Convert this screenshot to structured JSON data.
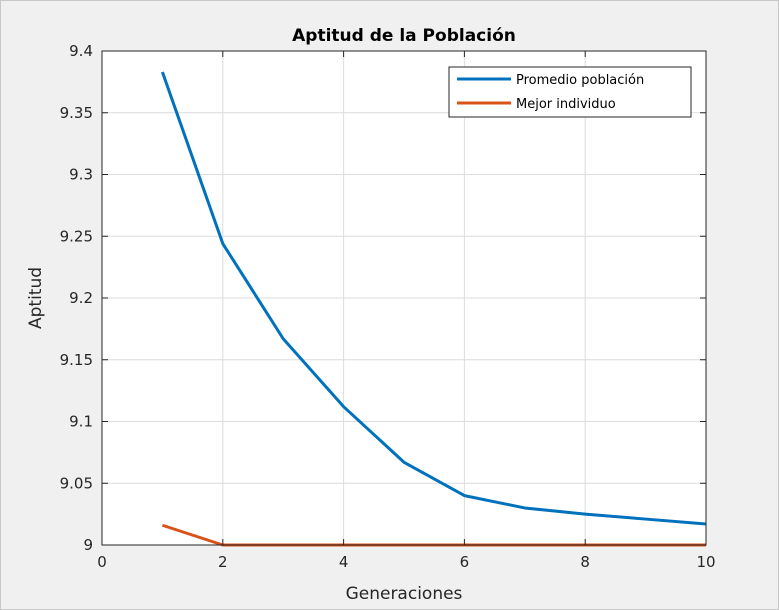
{
  "chart_data": {
    "type": "line",
    "title": "Aptitud de la Población",
    "xlabel": "Generaciones",
    "ylabel": "Aptitud",
    "xlim": [
      0,
      10
    ],
    "ylim": [
      9,
      9.4
    ],
    "xticks": [
      0,
      2,
      4,
      6,
      8,
      10
    ],
    "xtick_labels": [
      "0",
      "2",
      "4",
      "6",
      "8",
      "10"
    ],
    "yticks": [
      9,
      9.05,
      9.1,
      9.15,
      9.2,
      9.25,
      9.3,
      9.35,
      9.4
    ],
    "ytick_labels": [
      "9",
      "9.05",
      "9.1",
      "9.15",
      "9.2",
      "9.25",
      "9.3",
      "9.35",
      "9.4"
    ],
    "grid": true,
    "legend_position": "top-right",
    "x": [
      1,
      2,
      3,
      4,
      5,
      6,
      7,
      8,
      9,
      10
    ],
    "series": [
      {
        "name": "Promedio población",
        "color": "#0072bd",
        "values": [
          9.383,
          9.244,
          9.167,
          9.112,
          9.067,
          9.04,
          9.03,
          9.025,
          9.021,
          9.017
        ]
      },
      {
        "name": "Mejor individuo",
        "color": "#d95319",
        "values": [
          9.016,
          9.0,
          9.0,
          9.0,
          9.0,
          9.0,
          9.0,
          9.0,
          9.0,
          9.0
        ]
      }
    ]
  }
}
